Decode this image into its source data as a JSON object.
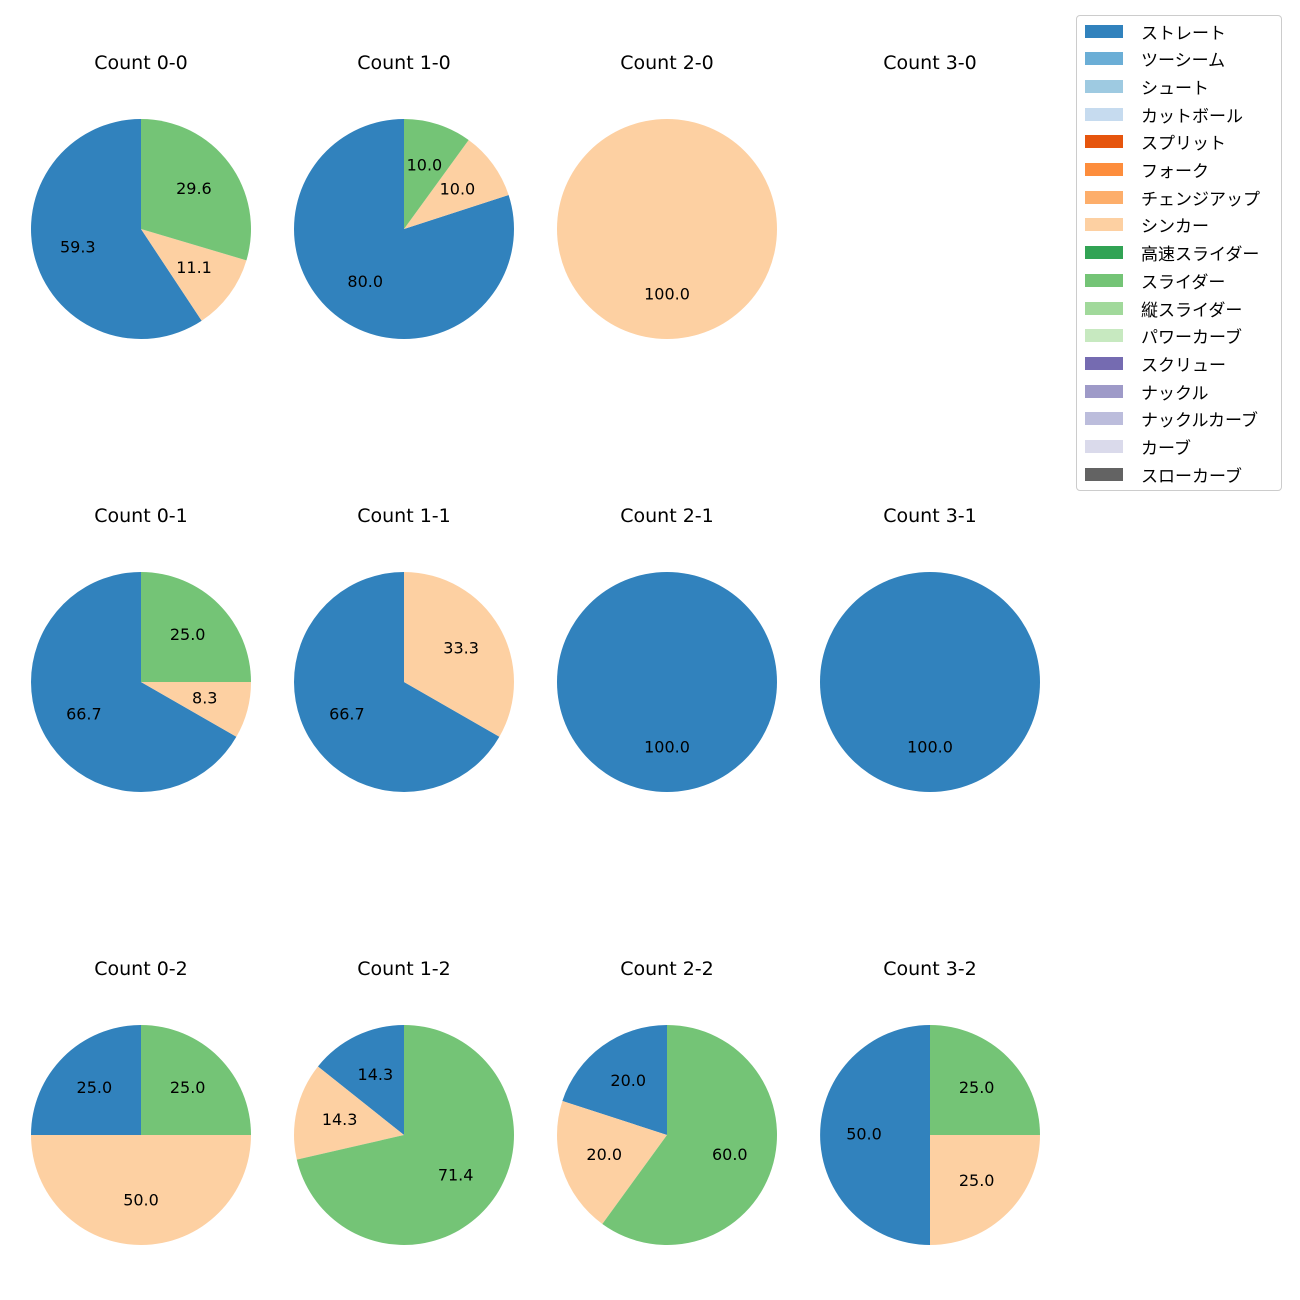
{
  "chart_data": {
    "type": "pie",
    "legend": {
      "placement": "top-right",
      "entries": [
        {
          "name": "ストレート",
          "color": "#3182bd"
        },
        {
          "name": "ツーシーム",
          "color": "#6baed6"
        },
        {
          "name": "シュート",
          "color": "#9ecae1"
        },
        {
          "name": "カットボール",
          "color": "#c6dbef"
        },
        {
          "name": "スプリット",
          "color": "#e6550d"
        },
        {
          "name": "フォーク",
          "color": "#fd8d3c"
        },
        {
          "name": "チェンジアップ",
          "color": "#fdae6b"
        },
        {
          "name": "シンカー",
          "color": "#fdd0a2"
        },
        {
          "name": "高速スライダー",
          "color": "#31a354"
        },
        {
          "name": "スライダー",
          "color": "#74c476"
        },
        {
          "name": "縦スライダー",
          "color": "#a1d99b"
        },
        {
          "name": "パワーカーブ",
          "color": "#c7e9c0"
        },
        {
          "name": "スクリュー",
          "color": "#756bb1"
        },
        {
          "name": "ナックル",
          "color": "#9e9ac8"
        },
        {
          "name": "ナックルカーブ",
          "color": "#bcbddc"
        },
        {
          "name": "カーブ",
          "color": "#dadaeb"
        },
        {
          "name": "スローカーブ",
          "color": "#636363"
        }
      ]
    },
    "pies": [
      {
        "title": "Count 0-0",
        "slices": [
          {
            "pitch": "ストレート",
            "value": 59.3,
            "label": "59.3"
          },
          {
            "pitch": "シンカー",
            "value": 11.1,
            "label": "11.1"
          },
          {
            "pitch": "スライダー",
            "value": 29.6,
            "label": "29.6"
          }
        ]
      },
      {
        "title": "Count 1-0",
        "slices": [
          {
            "pitch": "ストレート",
            "value": 80.0,
            "label": "80.0"
          },
          {
            "pitch": "シンカー",
            "value": 10.0,
            "label": "10.0"
          },
          {
            "pitch": "スライダー",
            "value": 10.0,
            "label": "10.0"
          }
        ]
      },
      {
        "title": "Count 2-0",
        "slices": [
          {
            "pitch": "シンカー",
            "value": 100.0,
            "label": "100.0"
          }
        ]
      },
      {
        "title": "Count 3-0",
        "slices": []
      },
      {
        "title": "Count 0-1",
        "slices": [
          {
            "pitch": "ストレート",
            "value": 66.7,
            "label": "66.7"
          },
          {
            "pitch": "シンカー",
            "value": 8.3,
            "label": "8.3"
          },
          {
            "pitch": "スライダー",
            "value": 25.0,
            "label": "25.0"
          }
        ]
      },
      {
        "title": "Count 1-1",
        "slices": [
          {
            "pitch": "ストレート",
            "value": 66.7,
            "label": "66.7"
          },
          {
            "pitch": "シンカー",
            "value": 33.3,
            "label": "33.3"
          }
        ]
      },
      {
        "title": "Count 2-1",
        "slices": [
          {
            "pitch": "ストレート",
            "value": 100.0,
            "label": "100.0"
          }
        ]
      },
      {
        "title": "Count 3-1",
        "slices": [
          {
            "pitch": "ストレート",
            "value": 100.0,
            "label": "100.0"
          }
        ]
      },
      {
        "title": "Count 0-2",
        "slices": [
          {
            "pitch": "ストレート",
            "value": 25.0,
            "label": "25.0"
          },
          {
            "pitch": "シンカー",
            "value": 50.0,
            "label": "50.0"
          },
          {
            "pitch": "スライダー",
            "value": 25.0,
            "label": "25.0"
          }
        ]
      },
      {
        "title": "Count 1-2",
        "slices": [
          {
            "pitch": "ストレート",
            "value": 14.3,
            "label": "14.3"
          },
          {
            "pitch": "シンカー",
            "value": 14.3,
            "label": "14.3"
          },
          {
            "pitch": "スライダー",
            "value": 71.4,
            "label": "71.4"
          }
        ]
      },
      {
        "title": "Count 2-2",
        "slices": [
          {
            "pitch": "ストレート",
            "value": 20.0,
            "label": "20.0"
          },
          {
            "pitch": "シンカー",
            "value": 20.0,
            "label": "20.0"
          },
          {
            "pitch": "スライダー",
            "value": 60.0,
            "label": "60.0"
          }
        ]
      },
      {
        "title": "Count 3-2",
        "slices": [
          {
            "pitch": "ストレート",
            "value": 50.0,
            "label": "50.0"
          },
          {
            "pitch": "シンカー",
            "value": 25.0,
            "label": "25.0"
          },
          {
            "pitch": "スライダー",
            "value": 25.0,
            "label": "25.0"
          }
        ]
      }
    ]
  }
}
